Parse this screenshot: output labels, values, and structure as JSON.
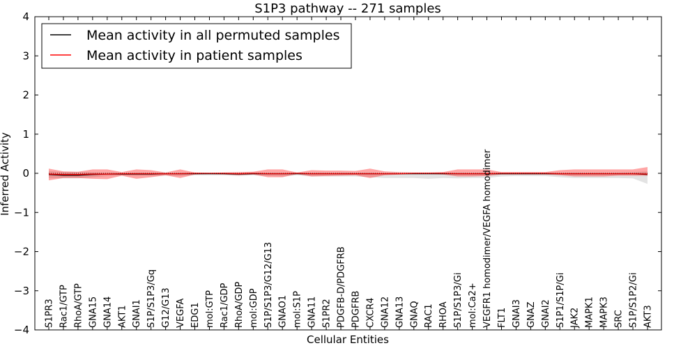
{
  "chart_data": {
    "type": "line",
    "title": "S1P3 pathway -- 271 samples",
    "xlabel": "Cellular Entities",
    "ylabel": "Inferred Activity",
    "ylim": [
      -4,
      4
    ],
    "yticks": [
      -4,
      -3,
      -2,
      -1,
      0,
      1,
      2,
      3,
      4
    ],
    "ytick_labels": [
      "−4",
      "−3",
      "−2",
      "−1",
      "0",
      "1",
      "2",
      "3",
      "4"
    ],
    "legend_position": "top-left",
    "categories": [
      "S1PR3",
      "Rac1/GTP",
      "RhoA/GTP",
      "GNA15",
      "GNA14",
      "AKT1",
      "GNAI1",
      "S1P/S1P3/Gq",
      "G12/G13",
      "VEGFA",
      "EDG1",
      "mol:GTP",
      "Rac1/GDP",
      "RhoA/GDP",
      "mol:GDP",
      "S1P/S1P3/G12/G13",
      "GNAO1",
      "mol:S1P",
      "GNA11",
      "S1PR2",
      "PDGFB-D/PDGFRB",
      "PDGFRB",
      "CXCR4",
      "GNA12",
      "GNA13",
      "GNAQ",
      "RAC1",
      "RHOA",
      "S1P/S1P3/Gi",
      "mol:Ca2+",
      "VEGFR1 homodimer/VEGFA homodimer",
      "FLT1",
      "GNAI3",
      "GNAZ",
      "GNAI2",
      "S1P1/S1P/Gi",
      "JAK2",
      "MAPK1",
      "MAPK3",
      "SRC",
      "S1P/S1P2/Gi",
      "AKT3"
    ],
    "series": [
      {
        "name": "Mean activity in all permuted samples",
        "color": "#000000",
        "values": [
          -0.03,
          -0.05,
          -0.05,
          -0.03,
          -0.02,
          -0.02,
          -0.02,
          -0.02,
          -0.01,
          -0.01,
          -0.01,
          -0.01,
          -0.01,
          -0.02,
          -0.01,
          -0.01,
          -0.01,
          -0.01,
          -0.01,
          -0.01,
          -0.01,
          -0.01,
          -0.01,
          -0.01,
          -0.01,
          -0.01,
          -0.01,
          -0.01,
          -0.01,
          -0.01,
          -0.01,
          -0.01,
          -0.01,
          -0.01,
          -0.01,
          -0.01,
          -0.01,
          -0.01,
          -0.01,
          -0.01,
          -0.01,
          -0.03
        ],
        "band_upper": [
          0.06,
          0.03,
          0.03,
          0.02,
          0.02,
          0.01,
          0.02,
          0.02,
          0.02,
          0.02,
          0.01,
          0.01,
          0.01,
          0.01,
          0.01,
          0.02,
          0.02,
          0.01,
          0.02,
          0.02,
          0.02,
          0.02,
          0.02,
          0.01,
          0.01,
          0.01,
          0.01,
          0.01,
          0.02,
          0.02,
          0.02,
          0.01,
          0.01,
          0.01,
          0.01,
          0.02,
          0.02,
          0.02,
          0.02,
          0.02,
          0.03,
          0.05
        ],
        "band_lower": [
          -0.12,
          -0.13,
          -0.13,
          -0.1,
          -0.07,
          -0.06,
          -0.07,
          -0.07,
          -0.06,
          -0.07,
          -0.05,
          -0.05,
          -0.05,
          -0.07,
          -0.05,
          -0.07,
          -0.08,
          -0.05,
          -0.08,
          -0.08,
          -0.08,
          -0.08,
          -0.1,
          -0.12,
          -0.12,
          -0.12,
          -0.14,
          -0.12,
          -0.13,
          -0.12,
          -0.12,
          -0.08,
          -0.07,
          -0.07,
          -0.07,
          -0.1,
          -0.12,
          -0.12,
          -0.12,
          -0.12,
          -0.13,
          -0.27
        ]
      },
      {
        "name": "Mean activity in patient samples",
        "color": "#ff0000",
        "values": [
          -0.02,
          -0.03,
          -0.03,
          -0.02,
          -0.02,
          -0.01,
          -0.01,
          -0.01,
          -0.01,
          -0.01,
          0.0,
          0.0,
          0.0,
          -0.01,
          0.0,
          -0.01,
          -0.01,
          0.0,
          -0.01,
          -0.01,
          -0.01,
          -0.01,
          -0.01,
          -0.01,
          -0.01,
          0.0,
          0.0,
          0.0,
          -0.01,
          -0.01,
          -0.01,
          0.0,
          0.0,
          0.0,
          0.0,
          -0.01,
          -0.01,
          -0.01,
          -0.01,
          -0.01,
          -0.01,
          -0.02
        ],
        "band_upper": [
          0.12,
          0.05,
          0.04,
          0.1,
          0.1,
          0.03,
          0.1,
          0.08,
          0.02,
          0.1,
          0.02,
          0.01,
          0.02,
          0.03,
          0.04,
          0.1,
          0.1,
          0.02,
          0.08,
          0.07,
          0.07,
          0.06,
          0.12,
          0.05,
          0.03,
          0.02,
          0.02,
          0.03,
          0.1,
          0.1,
          0.1,
          0.03,
          0.03,
          0.03,
          0.03,
          0.08,
          0.1,
          0.1,
          0.1,
          0.1,
          0.1,
          0.16
        ],
        "band_lower": [
          -0.18,
          -0.12,
          -0.12,
          -0.14,
          -0.15,
          -0.06,
          -0.14,
          -0.1,
          -0.05,
          -0.12,
          -0.03,
          -0.02,
          -0.03,
          -0.05,
          -0.03,
          -0.1,
          -0.1,
          -0.02,
          -0.08,
          -0.07,
          -0.06,
          -0.05,
          -0.12,
          -0.05,
          -0.03,
          -0.02,
          -0.02,
          -0.03,
          -0.08,
          -0.08,
          -0.07,
          -0.03,
          -0.03,
          -0.03,
          -0.03,
          -0.05,
          -0.08,
          -0.08,
          -0.08,
          -0.06,
          -0.06,
          -0.06
        ]
      }
    ]
  }
}
